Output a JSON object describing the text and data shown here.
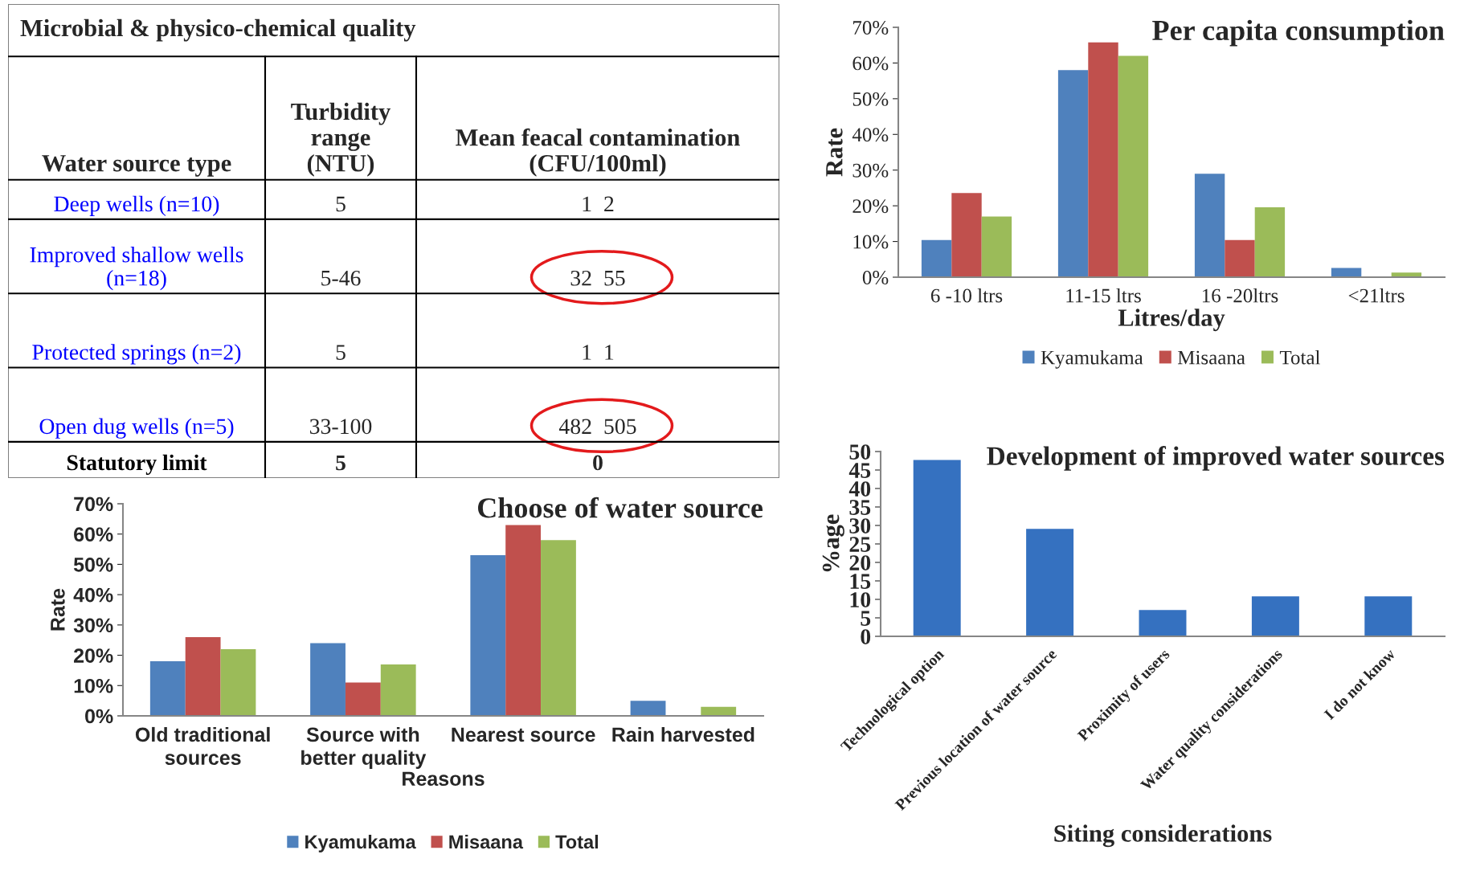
{
  "chart_data": [
    {
      "type": "other",
      "title": "Microbial & physico-chemical quality",
      "categories": [
        "Water source type",
        "Turbidity\nrange\n(NTU)",
        "Mean feacal contamination\n(CFU/100ml)"
      ],
      "y_categories": [
        "Deep wells (n=10)",
        "Improved shallow wells (n=18)",
        "Protected springs (n=2)",
        "Open dug wells (n=5)",
        "Statutory limit"
      ],
      "colors": [
        "#0000ff",
        "#0000ff",
        "#0000ff",
        "#0000ff",
        "#000000"
      ],
      "cell_labels": [
        [
          "5",
          "1  2"
        ],
        [
          "5-46",
          "32  55"
        ],
        [
          "5",
          "1  1"
        ],
        [
          "33-100",
          "482  505"
        ],
        [
          "5",
          "0"
        ]
      ]
    },
    {
      "type": "bar",
      "title": "Per capita consumption",
      "xlabel": "Litres/day",
      "ylabel": "Rate",
      "categories": [
        "6 -10 ltrs",
        "11-15 ltrs",
        "16 -20ltrs",
        "<21ltrs"
      ],
      "series": [
        {
          "name": "Kyamukama",
          "color": "#4f81bd",
          "values": [
            10.4,
            58,
            29,
            2.6
          ]
        },
        {
          "name": "Misaana",
          "color": "#c0504d",
          "values": [
            23.6,
            65.8,
            10.4,
            0
          ]
        },
        {
          "name": "Total",
          "color": "#9bbb59",
          "values": [
            17,
            62,
            19.6,
            1.3
          ]
        }
      ],
      "ylim": [
        0,
        70
      ],
      "yticks": [
        {
          "value": 0,
          "label": "0%"
        },
        {
          "value": 10,
          "label": "10%"
        },
        {
          "value": 20,
          "label": "20%"
        },
        {
          "value": 30,
          "label": "30%"
        },
        {
          "value": 40,
          "label": "40%"
        },
        {
          "value": 50,
          "label": "50%"
        },
        {
          "value": 60,
          "label": "60%"
        },
        {
          "value": 70,
          "label": "70%"
        }
      ],
      "legend": "bottom",
      "grid": false
    },
    {
      "type": "bar",
      "title": "Choose of water source",
      "xlabel": "Reasons",
      "ylabel": "Rate",
      "categories": [
        "Old traditional\nsources",
        "Source with\nbetter quality",
        "Nearest source",
        "Rain harvested"
      ],
      "series": [
        {
          "name": "Kyamukama",
          "color": "#4f81bd",
          "values": [
            18,
            24,
            53,
            5
          ]
        },
        {
          "name": "Misaana",
          "color": "#c0504d",
          "values": [
            26,
            11,
            63,
            0
          ]
        },
        {
          "name": "Total",
          "color": "#9bbb59",
          "values": [
            22,
            17,
            58,
            3
          ]
        }
      ],
      "ylim": [
        0,
        70
      ],
      "yticks": [
        {
          "value": 0,
          "label": "0%"
        },
        {
          "value": 10,
          "label": "10%"
        },
        {
          "value": 20,
          "label": "20%"
        },
        {
          "value": 30,
          "label": "30%"
        },
        {
          "value": 40,
          "label": "40%"
        },
        {
          "value": 50,
          "label": "50%"
        },
        {
          "value": 60,
          "label": "60%"
        },
        {
          "value": 70,
          "label": "70%"
        }
      ],
      "legend": "bottom",
      "grid": false
    },
    {
      "type": "bar",
      "title": "Development of improved water sources",
      "xlabel": "Siting considerations",
      "ylabel": "%age",
      "categories": [
        "Technological option",
        "Previous location of water source",
        "Proximity of users",
        "Water quality considerations",
        "I do not know"
      ],
      "series": [
        {
          "color": "#3571c0",
          "values": [
            47.7,
            29.1,
            7.1,
            10.8,
            10.8
          ]
        }
      ],
      "ylim": [
        0,
        50
      ],
      "yticks": [
        0,
        5,
        10,
        15,
        20,
        25,
        30,
        35,
        40,
        45,
        50
      ],
      "grid": false
    }
  ]
}
